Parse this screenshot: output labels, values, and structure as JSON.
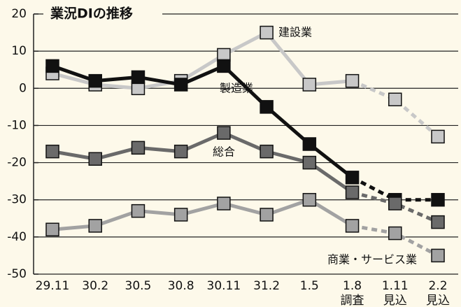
{
  "chart_data": {
    "type": "line",
    "title": "業況DIの推移",
    "categories": [
      "29.11",
      "30.2",
      "30.5",
      "30.8",
      "30.11",
      "31.2",
      "1.5",
      "1.8",
      "1.11",
      "2.2"
    ],
    "sublabels": [
      null,
      null,
      null,
      null,
      null,
      null,
      null,
      "調査",
      "見込",
      "見込"
    ],
    "dashed_from": "1.8",
    "series": [
      {
        "name": "建設業",
        "color": "#c8c8c8",
        "values": [
          4,
          1,
          0,
          2,
          9,
          15,
          1,
          2,
          -3,
          -13
        ]
      },
      {
        "name": "製造業",
        "color": "#111111",
        "values": [
          6,
          2,
          3,
          1,
          6,
          -5,
          -15,
          -24,
          -30,
          -30
        ]
      },
      {
        "name": "総合",
        "color": "#6a6a6a",
        "values": [
          -17,
          -19,
          -16,
          -17,
          -12,
          -17,
          -20,
          -28,
          -31,
          -36
        ]
      },
      {
        "name": "商業・サービス業",
        "color": "#a2a2a2",
        "values": [
          -38,
          -37,
          -33,
          -34,
          -31,
          -34,
          -30,
          -37,
          -39,
          -45
        ]
      }
    ],
    "ylim": [
      -50,
      20
    ],
    "yticks": [
      -50,
      -40,
      -30,
      -20,
      -10,
      0,
      10,
      20
    ],
    "grid": true
  }
}
